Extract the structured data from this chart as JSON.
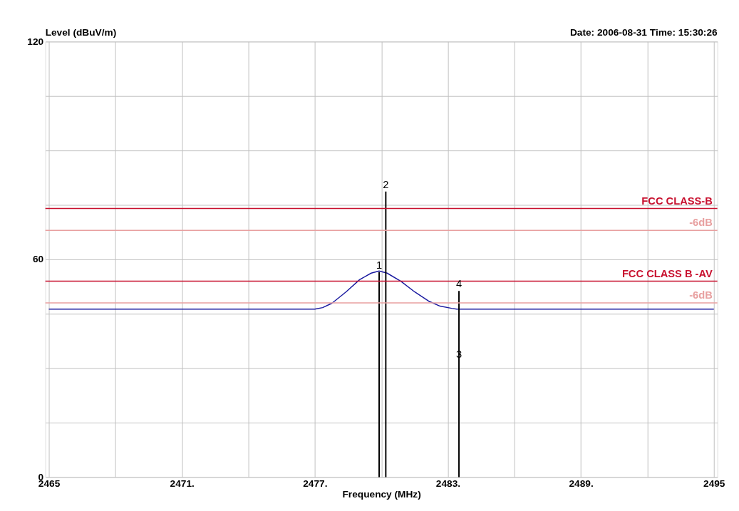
{
  "chart_data": {
    "type": "line",
    "ylabel": "Level (dBuV/m)",
    "xlabel": "Frequency (MHz)",
    "annotations": [
      "Date: 2006-08-31  Time: 15:30:26",
      {
        "text": "1",
        "x": 2479.9,
        "y": 56.5
      },
      {
        "text": "2",
        "x": 2480.2,
        "y": 78.7
      },
      {
        "text": "3",
        "x": 2483.5,
        "y": 32
      },
      {
        "text": "4",
        "x": 2483.5,
        "y": 51.3
      }
    ],
    "xlim": [
      2465,
      2495
    ],
    "ylim": [
      0,
      120
    ],
    "xticks": [
      2465,
      {
        "value": 2468,
        "label": null
      },
      {
        "value": 2471,
        "label": "2471."
      },
      {
        "value": 2474,
        "label": null
      },
      {
        "value": 2477,
        "label": "2477."
      },
      {
        "value": 2480,
        "label": null
      },
      {
        "value": 2483,
        "label": "2483."
      },
      {
        "value": 2486,
        "label": null
      },
      {
        "value": 2489,
        "label": "2489."
      },
      {
        "value": 2492,
        "label": null
      },
      2495
    ],
    "yticks": [
      0,
      {
        "value": 15,
        "label": null
      },
      {
        "value": 30,
        "label": null
      },
      {
        "value": 45,
        "label": null
      },
      60,
      {
        "value": 75,
        "label": null
      },
      {
        "value": 90,
        "label": null
      },
      {
        "value": 105,
        "label": null
      },
      120
    ],
    "grid": true,
    "ref_lines": [
      {
        "axis": "y",
        "value": 74,
        "label": "FCC CLASS-B",
        "color": "#c8102e"
      },
      {
        "axis": "y",
        "value": 68,
        "label": "-6dB",
        "color": "#e8a0a0"
      },
      {
        "axis": "y",
        "value": 54,
        "label": "FCC CLASS B -AV",
        "color": "#c8102e"
      },
      {
        "axis": "y",
        "value": 48,
        "label": "-6dB",
        "color": "#e8a0a0"
      }
    ],
    "series": [
      {
        "color": "#1a1aa0",
        "x": [
          2465,
          2477.0,
          2477.35,
          2477.77,
          2478.4,
          2479.02,
          2479.54,
          2479.9,
          2480.26,
          2480.89,
          2481.51,
          2482.13,
          2482.65,
          2483.17,
          2483.4,
          2495
        ],
        "values": [
          46.3,
          46.3,
          46.7,
          47.9,
          51.0,
          54.4,
          56.2,
          56.8,
          56.2,
          53.9,
          51.0,
          48.5,
          47.1,
          46.5,
          46.3,
          46.3
        ]
      },
      {
        "type": "bar",
        "color": "#000000",
        "x": [
          2479.9,
          2480.2,
          2483.5
        ],
        "values": [
          56.5,
          78.7,
          51.3
        ]
      }
    ]
  }
}
